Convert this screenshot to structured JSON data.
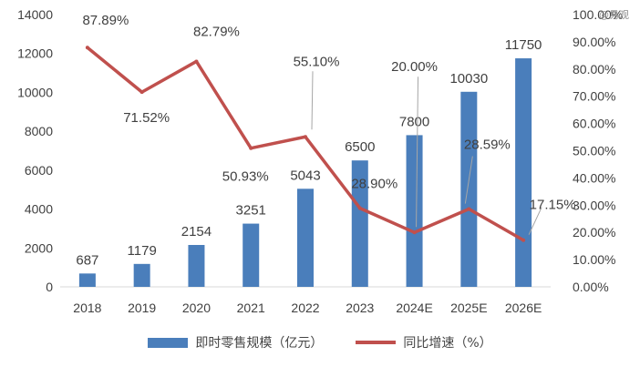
{
  "watermark": "@易观",
  "chart_data": {
    "type": "bar+line",
    "categories": [
      "2018",
      "2019",
      "2020",
      "2021",
      "2022",
      "2023",
      "2024E",
      "2025E",
      "2026E"
    ],
    "series": [
      {
        "name": "即时零售规模（亿元）",
        "type": "bar",
        "axis": "left",
        "values": [
          687,
          1179,
          2154,
          3251,
          5043,
          6500,
          7800,
          10030,
          11750
        ],
        "labels": [
          "687",
          "1179",
          "2154",
          "3251",
          "5043",
          "6500",
          "7800",
          "10030",
          "11750"
        ]
      },
      {
        "name": "同比增速（%）",
        "type": "line",
        "axis": "right",
        "values": [
          87.89,
          71.52,
          82.79,
          50.93,
          55.1,
          28.9,
          20.0,
          28.59,
          17.15
        ],
        "labels": [
          "87.89%",
          "71.52%",
          "82.79%",
          "50.93%",
          "55.10%",
          "28.90%",
          "20.00%",
          "28.59%",
          "17.15%"
        ]
      }
    ],
    "y_left": {
      "min": 0,
      "max": 14000,
      "ticks": [
        "0",
        "2000",
        "4000",
        "6000",
        "8000",
        "10000",
        "12000",
        "14000"
      ]
    },
    "y_right": {
      "min": 0,
      "max": 100,
      "ticks": [
        "0.00%",
        "10.00%",
        "20.00%",
        "30.00%",
        "40.00%",
        "50.00%",
        "60.00%",
        "70.00%",
        "80.00%",
        "90.00%",
        "100.00%"
      ]
    },
    "colors": {
      "bar": "#4a7ebb",
      "line": "#c0504d",
      "text": "#404040",
      "leader": "#a6a6a6"
    },
    "grid": false,
    "legend": "bottom"
  }
}
